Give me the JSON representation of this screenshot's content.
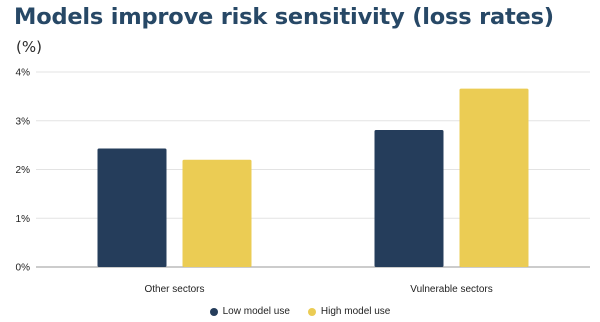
{
  "chart_data": {
    "type": "bar",
    "title": "Models improve risk sensitivity (loss rates)",
    "subtitle": "(%)",
    "categories": [
      "Other sectors",
      "Vulnerable sectors"
    ],
    "series": [
      {
        "name": "Low model use",
        "values": [
          2.43,
          2.81
        ],
        "color": "#253D5B"
      },
      {
        "name": "High model use",
        "values": [
          2.2,
          3.66
        ],
        "color": "#EBCC54"
      }
    ],
    "ylim": [
      0,
      4
    ],
    "yticks": [
      0,
      1,
      2,
      3,
      4
    ],
    "ytick_labels": [
      "0%",
      "1%",
      "2%",
      "3%",
      "4%"
    ],
    "grid": true,
    "legend_position": "bottom"
  }
}
